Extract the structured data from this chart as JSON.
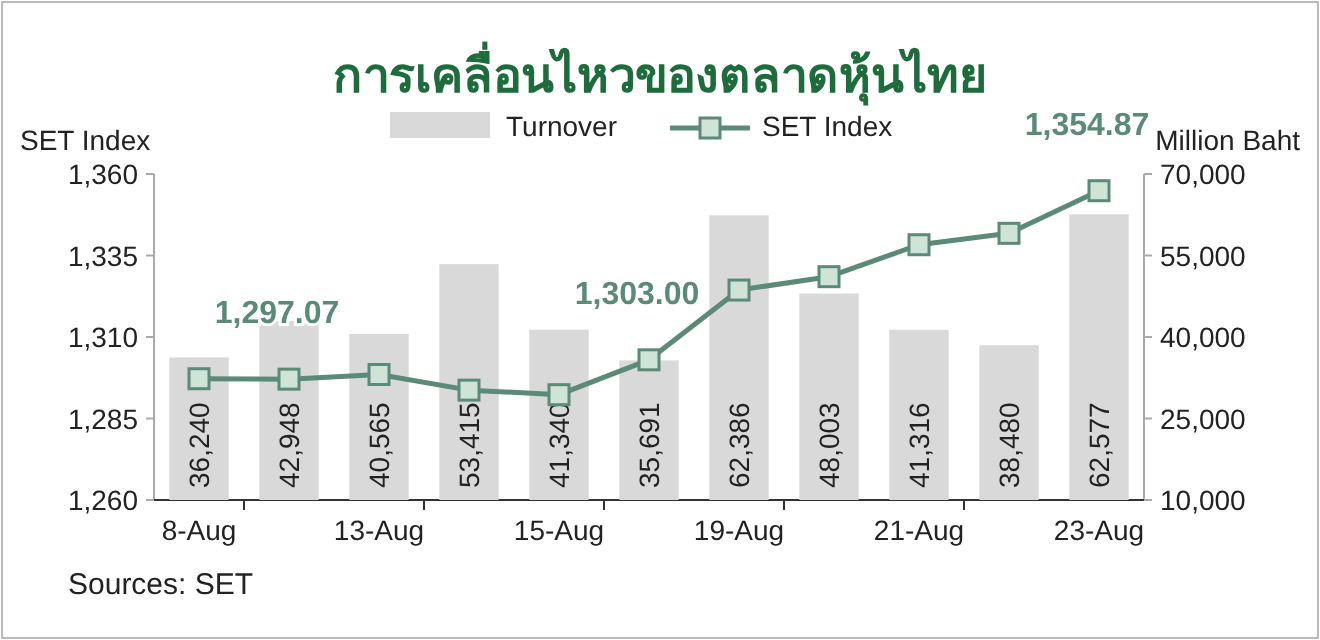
{
  "chart_data": {
    "type": "bar",
    "title": "การเคลื่อนไหวของตลาดหุ้นไทย",
    "ylabel": "SET Index",
    "y2label": "Million Baht",
    "categories": [
      "8-Aug",
      null,
      "13-Aug",
      null,
      "15-Aug",
      null,
      "19-Aug",
      null,
      "21-Aug",
      null,
      "23-Aug"
    ],
    "series": [
      {
        "name": "Turnover",
        "axis": "y2",
        "color": "#d9d9d9",
        "values": [
          36240,
          42948,
          40565,
          53415,
          41340,
          35691,
          62386,
          48003,
          41316,
          38480,
          62577
        ],
        "value_labels": [
          "36,240",
          "42,948",
          "40,565",
          "53,415",
          "41,340",
          "35,691",
          "62,386",
          "48,003",
          "41,316",
          "38,480",
          "62,577"
        ]
      },
      {
        "name": "SET Index",
        "type": "line",
        "color": "#5b8a78",
        "marker": "square",
        "line_style": "solid",
        "values": [
          1297.2,
          1297.07,
          1298.5,
          1293.7,
          1292.3,
          1303.0,
          1324.4,
          1328.5,
          1338.3,
          1341.8,
          1354.87
        ],
        "value_labels": [
          null,
          "1,297.07",
          null,
          null,
          null,
          "1,303.00",
          null,
          null,
          null,
          null,
          "1,354.87"
        ]
      }
    ],
    "ylim": [
      1260,
      1360
    ],
    "yticks": [
      {
        "value": 1260,
        "label": "1,260"
      },
      {
        "value": 1285,
        "label": "1,285"
      },
      {
        "value": 1310,
        "label": "1,310"
      },
      {
        "value": 1335,
        "label": "1,335"
      },
      {
        "value": 1360,
        "label": "1,360"
      }
    ],
    "y2lim": [
      10000,
      70000
    ],
    "y2ticks": [
      {
        "value": 10000,
        "label": "10,000"
      },
      {
        "value": 25000,
        "label": "25,000"
      },
      {
        "value": 40000,
        "label": "40,000"
      },
      {
        "value": 55000,
        "label": "55,000"
      },
      {
        "value": 70000,
        "label": "70,000"
      }
    ],
    "grid": false,
    "legend": "top",
    "annotations": [
      "Sources: SET"
    ]
  }
}
